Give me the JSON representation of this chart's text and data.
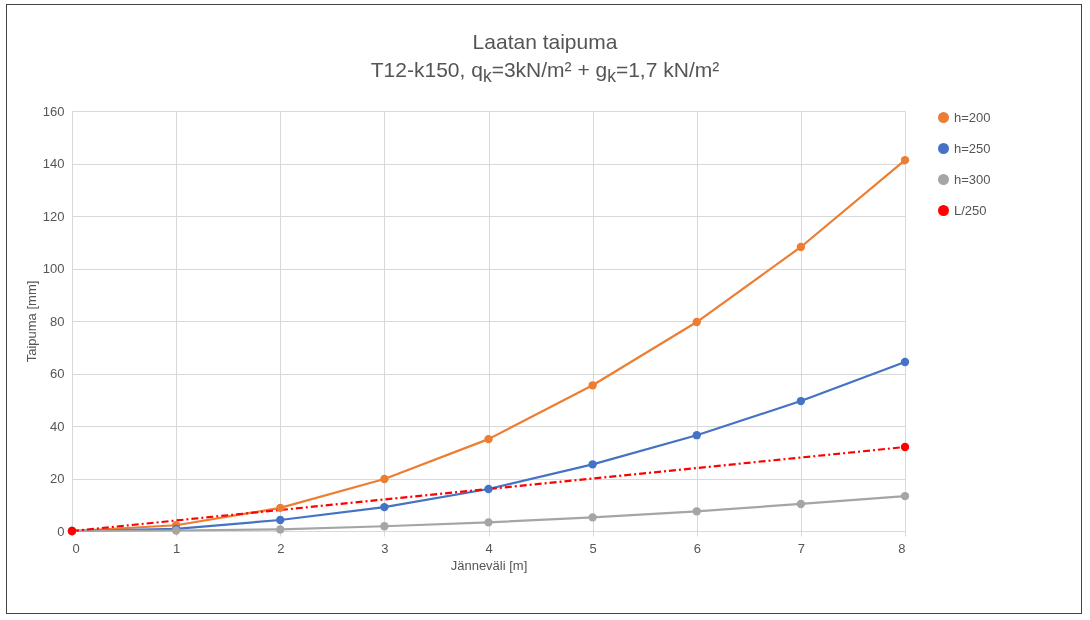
{
  "chart_data": {
    "type": "line",
    "title": "Laatan taipuma",
    "subtitle": "T12-k150, q$_{k}$=3kN/m² + g$_{k}$=1,7 kN/m²",
    "xlabel": "Jänneväli [m]",
    "ylabel": "Taipuma [mm]",
    "x": [
      0,
      1,
      2,
      3,
      4,
      5,
      6,
      7,
      8
    ],
    "series": [
      {
        "name": "h=200",
        "color": "#ed7d31",
        "values": [
          0,
          2.2,
          8.8,
          19.8,
          35,
          55.5,
          79.6,
          108.2,
          141.3
        ]
      },
      {
        "name": "h=250",
        "color": "#4472c4",
        "values": [
          0,
          0.8,
          4.2,
          9.1,
          16,
          25.4,
          36.5,
          49.5,
          64.4
        ]
      },
      {
        "name": "h=300",
        "color": "#a5a5a5",
        "values": [
          0,
          0.2,
          0.6,
          1.8,
          3.3,
          5.2,
          7.5,
          10.3,
          13.3
        ]
      },
      {
        "name": "L/250",
        "color": "#ff0000",
        "x": [
          0,
          8
        ],
        "values": [
          0,
          32
        ],
        "line_style": "dashed"
      }
    ],
    "xlim": [
      0,
      8
    ],
    "xticks": [
      0,
      1,
      2,
      3,
      4,
      5,
      6,
      7,
      8
    ],
    "ylim": [
      0,
      160
    ],
    "yticks": [
      0,
      20,
      40,
      60,
      80,
      100,
      120,
      140,
      160
    ],
    "grid": true,
    "legend": "right",
    "marker": "circle",
    "line_style": "solid"
  }
}
